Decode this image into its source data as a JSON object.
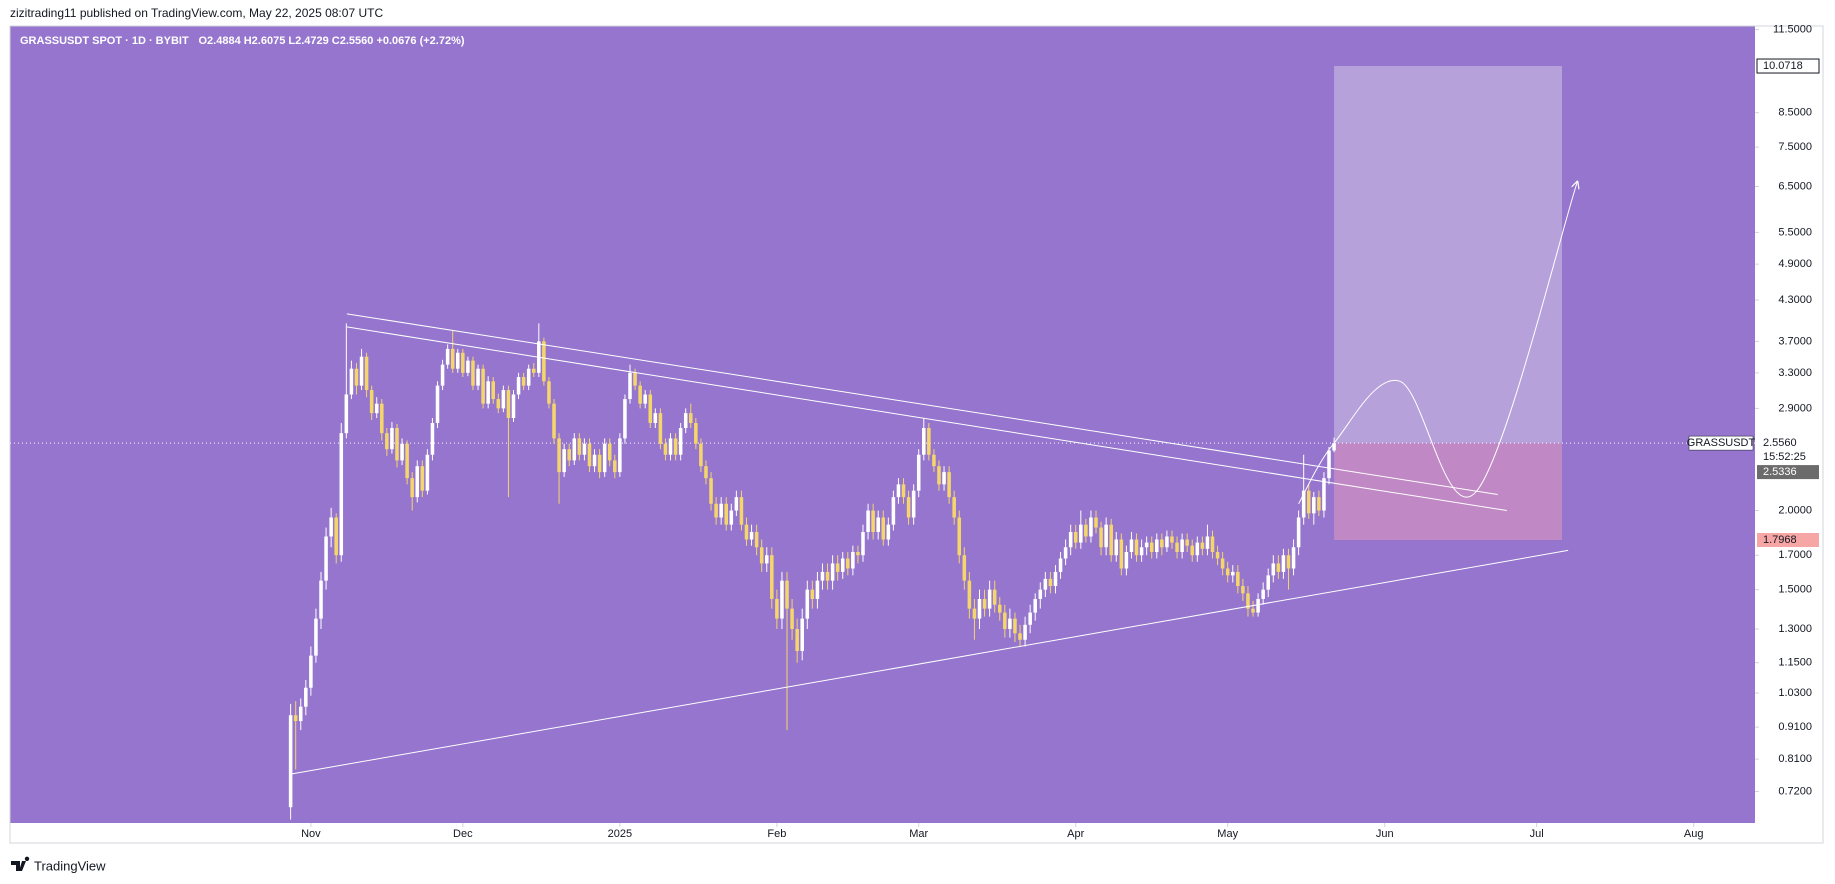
{
  "header": {
    "publisher": "zizitrading11 published on TradingView.com, May 22, 2025 08:07 UTC"
  },
  "footer": {
    "brand": "TradingView"
  },
  "chart_data": {
    "type": "candlestick",
    "title": "GRASSUSDT SPOT · 1D · BYBIT",
    "ohlc_legend": "O2.4884 H2.6075 L2.4729 C2.5560 +0.0676 (+2.72%)",
    "background": "#9575cd",
    "up_color": "#ffffff",
    "down_color": "#f5d66b",
    "log_scale": true,
    "grid": false,
    "xlim": [
      -55.4,
      289.1
    ],
    "ylim": [
      0.642,
      11.65
    ],
    "xticks": [
      {
        "value": 4,
        "label": "Nov"
      },
      {
        "value": 34,
        "label": "Dec"
      },
      {
        "value": 65,
        "label": "2025"
      },
      {
        "value": 96,
        "label": "Feb"
      },
      {
        "value": 124,
        "label": "Mar"
      },
      {
        "value": 155,
        "label": "Apr"
      },
      {
        "value": 185,
        "label": "May"
      },
      {
        "value": 216,
        "label": "Jun"
      },
      {
        "value": 246,
        "label": "Jul"
      },
      {
        "value": 277,
        "label": "Aug"
      }
    ],
    "yticks": [
      {
        "value": 11.5,
        "label": "11.5000"
      },
      {
        "value": 8.5,
        "label": "8.5000"
      },
      {
        "value": 7.5,
        "label": "7.5000"
      },
      {
        "value": 6.5,
        "label": "6.5000"
      },
      {
        "value": 5.5,
        "label": "5.5000"
      },
      {
        "value": 4.9,
        "label": "4.9000"
      },
      {
        "value": 4.3,
        "label": "4.3000"
      },
      {
        "value": 3.7,
        "label": "3.7000"
      },
      {
        "value": 3.3,
        "label": "3.3000"
      },
      {
        "value": 2.9,
        "label": "2.9000"
      },
      {
        "value": 2.0,
        "label": "2.0000"
      },
      {
        "value": 1.7,
        "label": "1.7000"
      },
      {
        "value": 1.5,
        "label": "1.5000"
      },
      {
        "value": 1.3,
        "label": "1.3000"
      },
      {
        "value": 1.15,
        "label": "1.1500"
      },
      {
        "value": 1.03,
        "label": "1.0300"
      },
      {
        "value": 0.91,
        "label": "0.9100"
      },
      {
        "value": 0.81,
        "label": "0.8100"
      },
      {
        "value": 0.72,
        "label": "0.7200"
      }
    ],
    "x": [
      0,
      1,
      2,
      3,
      4,
      5,
      6,
      7,
      8,
      9,
      10,
      11,
      12,
      13,
      14,
      15,
      16,
      17,
      18,
      19,
      20,
      21,
      22,
      23,
      24,
      25,
      26,
      27,
      28,
      29,
      30,
      31,
      32,
      33,
      34,
      35,
      36,
      37,
      38,
      39,
      40,
      41,
      42,
      43,
      44,
      45,
      46,
      47,
      48,
      49,
      50,
      51,
      52,
      53,
      54,
      55,
      56,
      57,
      58,
      59,
      60,
      61,
      62,
      63,
      64,
      65,
      66,
      67,
      68,
      69,
      70,
      71,
      72,
      73,
      74,
      75,
      76,
      77,
      78,
      79,
      80,
      81,
      82,
      83,
      84,
      85,
      86,
      87,
      88,
      89,
      90,
      91,
      92,
      93,
      94,
      95,
      96,
      97,
      98,
      99,
      100,
      101,
      102,
      103,
      104,
      105,
      106,
      107,
      108,
      109,
      110,
      111,
      112,
      113,
      114,
      115,
      116,
      117,
      118,
      119,
      120,
      121,
      122,
      123,
      124,
      125,
      126,
      127,
      128,
      129,
      130,
      131,
      132,
      133,
      134,
      135,
      136,
      137,
      138,
      139,
      140,
      141,
      142,
      143,
      144,
      145,
      146,
      147,
      148,
      149,
      150,
      151,
      152,
      153,
      154,
      155,
      156,
      157,
      158,
      159,
      160,
      161,
      162,
      163,
      164,
      165,
      166,
      167,
      168,
      169,
      170,
      171,
      172,
      173,
      174,
      175,
      176,
      177,
      178,
      179,
      180,
      181,
      182,
      183,
      184,
      185,
      186,
      187,
      188,
      189,
      190,
      191,
      192,
      193,
      194,
      195,
      196,
      197,
      198,
      199,
      200,
      201,
      202,
      203,
      204,
      205,
      206
    ],
    "series": [
      {
        "name": "GRASSUSDT",
        "open": [
          0.68,
          0.95,
          0.93,
          0.98,
          1.05,
          1.18,
          1.35,
          1.55,
          1.82,
          1.95,
          1.7,
          2.65,
          3.05,
          3.35,
          3.15,
          3.5,
          3.1,
          2.85,
          2.95,
          2.65,
          2.5,
          2.7,
          2.4,
          2.55,
          2.25,
          2.1,
          2.35,
          2.15,
          2.45,
          2.75,
          3.15,
          3.4,
          3.6,
          3.35,
          3.55,
          3.3,
          3.45,
          3.15,
          3.35,
          2.95,
          3.2,
          3.0,
          2.9,
          3.1,
          2.8,
          3.05,
          3.25,
          3.15,
          3.35,
          3.3,
          3.7,
          3.2,
          2.95,
          2.6,
          2.3,
          2.5,
          2.4,
          2.6,
          2.45,
          2.55,
          2.35,
          2.45,
          2.3,
          2.55,
          2.4,
          2.3,
          2.6,
          3.0,
          3.3,
          3.15,
          2.95,
          3.05,
          2.75,
          2.85,
          2.55,
          2.45,
          2.6,
          2.45,
          2.7,
          2.85,
          2.75,
          2.55,
          2.35,
          2.25,
          2.05,
          1.95,
          2.05,
          1.9,
          2.0,
          2.1,
          1.9,
          1.8,
          1.85,
          1.75,
          1.65,
          1.7,
          1.45,
          1.35,
          1.55,
          1.4,
          1.3,
          1.2,
          1.35,
          1.5,
          1.45,
          1.55,
          1.6,
          1.55,
          1.65,
          1.6,
          1.68,
          1.62,
          1.72,
          1.7,
          1.85,
          2.0,
          1.85,
          1.95,
          1.8,
          1.9,
          2.1,
          2.2,
          2.1,
          1.95,
          2.15,
          2.45,
          2.7,
          2.45,
          2.35,
          2.2,
          2.3,
          2.1,
          1.95,
          1.7,
          1.55,
          1.4,
          1.35,
          1.45,
          1.4,
          1.5,
          1.42,
          1.38,
          1.3,
          1.35,
          1.28,
          1.25,
          1.32,
          1.38,
          1.45,
          1.5,
          1.56,
          1.52,
          1.6,
          1.68,
          1.75,
          1.85,
          1.78,
          1.9,
          1.82,
          1.95,
          1.88,
          1.75,
          1.9,
          1.7,
          1.8,
          1.62,
          1.72,
          1.8,
          1.7,
          1.75,
          1.78,
          1.72,
          1.8,
          1.75,
          1.82,
          1.78,
          1.72,
          1.8,
          1.76,
          1.7,
          1.78,
          1.74,
          1.82,
          1.72,
          1.68,
          1.62,
          1.58,
          1.6,
          1.52,
          1.48,
          1.4,
          1.38,
          1.45,
          1.5,
          1.58,
          1.65,
          1.6,
          1.7,
          1.62,
          1.75,
          1.95,
          2.15,
          1.98,
          2.1,
          2.0,
          2.25,
          2.4884
        ],
        "high": [
          0.99,
          1.0,
          1.01,
          1.08,
          1.22,
          1.4,
          1.6,
          1.88,
          2.02,
          1.98,
          2.75,
          3.95,
          3.45,
          3.42,
          3.6,
          3.55,
          3.15,
          3.02,
          3.0,
          2.7,
          2.76,
          2.74,
          2.6,
          2.58,
          2.3,
          2.4,
          2.4,
          2.5,
          2.8,
          3.2,
          3.46,
          3.66,
          3.85,
          3.6,
          3.6,
          3.5,
          3.5,
          3.4,
          3.4,
          3.26,
          3.25,
          3.06,
          3.15,
          3.15,
          3.1,
          3.3,
          3.3,
          3.4,
          3.42,
          3.95,
          3.75,
          3.25,
          3.0,
          2.65,
          2.55,
          2.55,
          2.65,
          2.65,
          2.6,
          2.6,
          2.5,
          2.5,
          2.6,
          2.6,
          2.45,
          2.65,
          3.05,
          3.4,
          3.35,
          3.2,
          3.1,
          3.1,
          2.9,
          2.9,
          2.6,
          2.65,
          2.65,
          2.75,
          2.9,
          2.95,
          2.8,
          2.6,
          2.4,
          2.3,
          2.1,
          2.1,
          2.1,
          2.05,
          2.15,
          2.15,
          1.95,
          1.9,
          1.9,
          1.8,
          1.75,
          1.75,
          1.5,
          1.6,
          1.6,
          1.45,
          1.35,
          1.4,
          1.55,
          1.55,
          1.6,
          1.65,
          1.65,
          1.7,
          1.7,
          1.72,
          1.72,
          1.76,
          1.76,
          1.9,
          2.05,
          2.05,
          2.0,
          2.0,
          1.95,
          2.15,
          2.25,
          2.25,
          2.15,
          2.2,
          2.5,
          2.8,
          2.75,
          2.5,
          2.4,
          2.35,
          2.35,
          2.15,
          2.0,
          1.75,
          1.6,
          1.45,
          1.5,
          1.5,
          1.55,
          1.55,
          1.46,
          1.42,
          1.4,
          1.38,
          1.32,
          1.36,
          1.42,
          1.48,
          1.54,
          1.6,
          1.6,
          1.64,
          1.72,
          1.8,
          1.9,
          1.9,
          2.0,
          1.94,
          2.0,
          2.0,
          1.92,
          1.95,
          1.94,
          1.85,
          1.84,
          1.76,
          1.85,
          1.84,
          1.8,
          1.82,
          1.82,
          1.84,
          1.84,
          1.86,
          1.86,
          1.82,
          1.84,
          1.84,
          1.8,
          1.82,
          1.82,
          1.9,
          1.86,
          1.76,
          1.72,
          1.66,
          1.64,
          1.64,
          1.56,
          1.52,
          1.44,
          1.48,
          1.54,
          1.62,
          1.7,
          1.7,
          1.74,
          1.74,
          1.8,
          2.0,
          2.45,
          2.2,
          2.14,
          2.15,
          2.3,
          2.52,
          2.6075
        ],
        "low": [
          0.65,
          0.78,
          0.9,
          0.95,
          1.02,
          1.15,
          1.3,
          1.5,
          1.75,
          1.65,
          1.66,
          2.6,
          3.0,
          3.05,
          3.1,
          3.02,
          2.78,
          2.8,
          2.58,
          2.44,
          2.46,
          2.34,
          2.36,
          2.2,
          2.0,
          2.06,
          2.1,
          2.12,
          2.4,
          2.7,
          3.1,
          3.35,
          3.3,
          3.3,
          3.25,
          3.26,
          3.1,
          3.1,
          2.9,
          2.9,
          2.95,
          2.85,
          2.86,
          2.1,
          2.76,
          3.0,
          3.1,
          3.1,
          3.25,
          3.25,
          3.15,
          2.9,
          2.55,
          2.05,
          2.26,
          2.35,
          2.36,
          2.4,
          2.4,
          2.3,
          2.3,
          2.25,
          2.26,
          2.35,
          2.25,
          2.26,
          2.55,
          2.95,
          3.1,
          2.9,
          2.9,
          2.7,
          2.7,
          2.5,
          2.4,
          2.4,
          2.4,
          2.4,
          2.65,
          2.7,
          2.5,
          2.3,
          2.2,
          2.0,
          1.9,
          1.9,
          1.86,
          1.86,
          1.96,
          1.86,
          1.76,
          1.76,
          1.7,
          1.6,
          1.6,
          1.4,
          1.3,
          1.3,
          0.9,
          1.25,
          1.15,
          1.16,
          1.3,
          1.4,
          1.4,
          1.5,
          1.5,
          1.5,
          1.55,
          1.56,
          1.58,
          1.58,
          1.65,
          1.66,
          1.8,
          1.8,
          1.8,
          1.76,
          1.76,
          1.86,
          2.05,
          2.05,
          1.9,
          1.9,
          2.1,
          2.4,
          2.4,
          2.3,
          2.15,
          2.15,
          2.05,
          1.9,
          1.65,
          1.5,
          1.35,
          1.25,
          1.3,
          1.36,
          1.36,
          1.38,
          1.34,
          1.26,
          1.26,
          1.24,
          1.22,
          1.22,
          1.28,
          1.34,
          1.4,
          1.46,
          1.48,
          1.48,
          1.56,
          1.64,
          1.7,
          1.74,
          1.74,
          1.78,
          1.78,
          1.84,
          1.7,
          1.7,
          1.66,
          1.66,
          1.58,
          1.58,
          1.68,
          1.66,
          1.66,
          1.7,
          1.68,
          1.68,
          1.7,
          1.72,
          1.74,
          1.68,
          1.68,
          1.72,
          1.66,
          1.66,
          1.7,
          1.7,
          1.68,
          1.64,
          1.58,
          1.54,
          1.54,
          1.48,
          1.44,
          1.36,
          1.36,
          1.36,
          1.42,
          1.46,
          1.54,
          1.56,
          1.56,
          1.5,
          1.58,
          1.7,
          1.9,
          1.94,
          1.9,
          1.96,
          1.95,
          2.2,
          2.4729
        ],
        "close": [
          0.95,
          0.93,
          0.98,
          1.05,
          1.18,
          1.35,
          1.55,
          1.82,
          1.95,
          1.7,
          2.65,
          3.05,
          3.35,
          3.15,
          3.5,
          3.1,
          2.85,
          2.95,
          2.65,
          2.5,
          2.7,
          2.4,
          2.55,
          2.25,
          2.1,
          2.35,
          2.15,
          2.45,
          2.75,
          3.15,
          3.4,
          3.6,
          3.35,
          3.55,
          3.3,
          3.45,
          3.15,
          3.35,
          2.95,
          3.2,
          3.0,
          2.9,
          3.1,
          2.8,
          3.05,
          3.25,
          3.15,
          3.35,
          3.3,
          3.7,
          3.2,
          2.95,
          2.6,
          2.3,
          2.5,
          2.4,
          2.6,
          2.45,
          2.55,
          2.35,
          2.45,
          2.3,
          2.55,
          2.4,
          2.3,
          2.6,
          3.0,
          3.3,
          3.15,
          2.95,
          3.05,
          2.75,
          2.85,
          2.55,
          2.45,
          2.6,
          2.45,
          2.7,
          2.85,
          2.75,
          2.55,
          2.35,
          2.25,
          2.05,
          1.95,
          2.05,
          1.9,
          2.0,
          2.1,
          1.9,
          1.8,
          1.85,
          1.75,
          1.65,
          1.7,
          1.45,
          1.35,
          1.55,
          1.4,
          1.3,
          1.2,
          1.35,
          1.5,
          1.45,
          1.55,
          1.6,
          1.55,
          1.65,
          1.6,
          1.68,
          1.62,
          1.72,
          1.7,
          1.85,
          2.0,
          1.85,
          1.95,
          1.8,
          1.9,
          2.1,
          2.2,
          2.1,
          1.95,
          2.15,
          2.45,
          2.7,
          2.45,
          2.35,
          2.2,
          2.3,
          2.1,
          1.95,
          1.7,
          1.55,
          1.4,
          1.35,
          1.45,
          1.4,
          1.5,
          1.42,
          1.38,
          1.3,
          1.35,
          1.28,
          1.25,
          1.32,
          1.38,
          1.45,
          1.5,
          1.56,
          1.52,
          1.6,
          1.68,
          1.75,
          1.85,
          1.78,
          1.9,
          1.82,
          1.95,
          1.88,
          1.75,
          1.9,
          1.7,
          1.8,
          1.62,
          1.72,
          1.8,
          1.7,
          1.75,
          1.78,
          1.72,
          1.8,
          1.75,
          1.82,
          1.78,
          1.72,
          1.8,
          1.76,
          1.7,
          1.78,
          1.74,
          1.82,
          1.72,
          1.68,
          1.62,
          1.58,
          1.6,
          1.52,
          1.48,
          1.4,
          1.38,
          1.45,
          1.5,
          1.58,
          1.65,
          1.6,
          1.7,
          1.62,
          1.75,
          1.95,
          2.15,
          1.98,
          2.1,
          2.0,
          2.25,
          2.4884,
          2.556
        ]
      }
    ],
    "last_price": {
      "value": 2.556,
      "label": "2.5560",
      "symbol": "GRASSUSDT",
      "countdown": "15:52:25"
    },
    "marker_label": 2.5336,
    "position": {
      "start": 206,
      "end": 251,
      "entry": 2.556,
      "target": 10.0718,
      "stop": 1.7968,
      "target_color": "#b9a6dd",
      "stop_color": "#c48bc3"
    },
    "trendlines": [
      {
        "x": [
          11.1,
          238.3
        ],
        "y": [
          4.09,
          2.12
        ]
      },
      {
        "x": [
          11.1,
          240.1
        ],
        "y": [
          3.9,
          2.0
        ]
      },
      {
        "x": [
          0,
          252.2
        ],
        "y": [
          0.767,
          1.73
        ]
      }
    ],
    "projection": {
      "x": [
        199,
        206,
        219,
        234,
        254
      ],
      "y": [
        2.05,
        2.556,
        3.2,
        2.14,
        6.6
      ]
    }
  }
}
